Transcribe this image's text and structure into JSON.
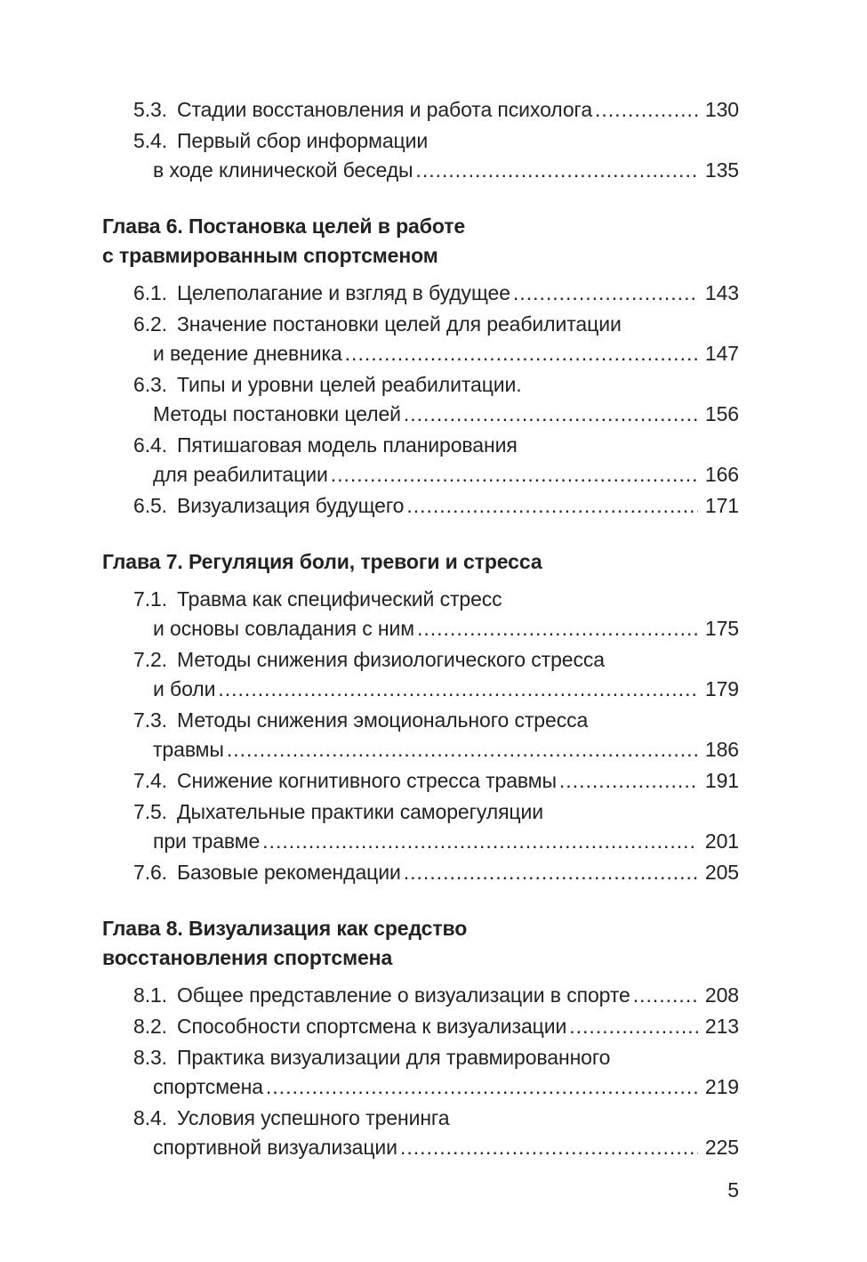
{
  "page": {
    "number": "5"
  },
  "colors": {
    "text": "#222222",
    "background": "#ffffff"
  },
  "toc": {
    "sections": [
      {
        "heading": null,
        "entries": [
          {
            "num": "5.3.",
            "lines": [
              "Стадии восстановления и работа психолога"
            ],
            "page": "130"
          },
          {
            "num": "5.4.",
            "lines": [
              "Первый сбор информации",
              "в ходе клинической беседы"
            ],
            "page": "135"
          }
        ]
      },
      {
        "heading": [
          "Глава 6. Постановка целей в работе",
          "с травмированным спортсменом"
        ],
        "entries": [
          {
            "num": "6.1.",
            "lines": [
              "Целеполагание и взгляд в будущее"
            ],
            "page": "143"
          },
          {
            "num": "6.2.",
            "lines": [
              "Значение постановки целей для реабилитации",
              "и ведение дневника"
            ],
            "page": "147"
          },
          {
            "num": "6.3.",
            "lines": [
              "Типы и уровни целей реабилитации.",
              "Методы постановки целей"
            ],
            "page": "156"
          },
          {
            "num": "6.4.",
            "lines": [
              "Пятишаговая модель планирования",
              "для реабилитации"
            ],
            "page": "166"
          },
          {
            "num": "6.5.",
            "lines": [
              "Визуализация будущего"
            ],
            "page": "171"
          }
        ]
      },
      {
        "heading": [
          "Глава 7. Регуляция боли, тревоги и стресса"
        ],
        "entries": [
          {
            "num": "7.1.",
            "lines": [
              "Травма как специфический стресс",
              "и основы совладания с ним"
            ],
            "page": "175"
          },
          {
            "num": "7.2.",
            "lines": [
              "Методы снижения физиологического стресса",
              "и боли"
            ],
            "page": "179"
          },
          {
            "num": "7.3.",
            "lines": [
              "Методы снижения эмоционального стресса",
              "травмы"
            ],
            "page": "186"
          },
          {
            "num": "7.4.",
            "lines": [
              "Снижение когнитивного стресса травмы"
            ],
            "page": "191"
          },
          {
            "num": "7.5.",
            "lines": [
              "Дыхательные практики саморегуляции",
              "при травме"
            ],
            "page": "201"
          },
          {
            "num": "7.6.",
            "lines": [
              "Базовые рекомендации"
            ],
            "page": "205"
          }
        ]
      },
      {
        "heading": [
          "Глава 8. Визуализация как средство",
          "восстановления спортсмена"
        ],
        "entries": [
          {
            "num": "8.1.",
            "lines": [
              "Общее представление о визуализации в спорте"
            ],
            "page": "208"
          },
          {
            "num": "8.2.",
            "lines": [
              "Способности спортсмена к визуализации"
            ],
            "page": "213"
          },
          {
            "num": "8.3.",
            "lines": [
              "Практика визуализации для травмированного",
              "спортсмена"
            ],
            "page": "219"
          },
          {
            "num": "8.4.",
            "lines": [
              "Условия успешного тренинга",
              "спортивной визуализации"
            ],
            "page": "225"
          }
        ]
      }
    ]
  }
}
